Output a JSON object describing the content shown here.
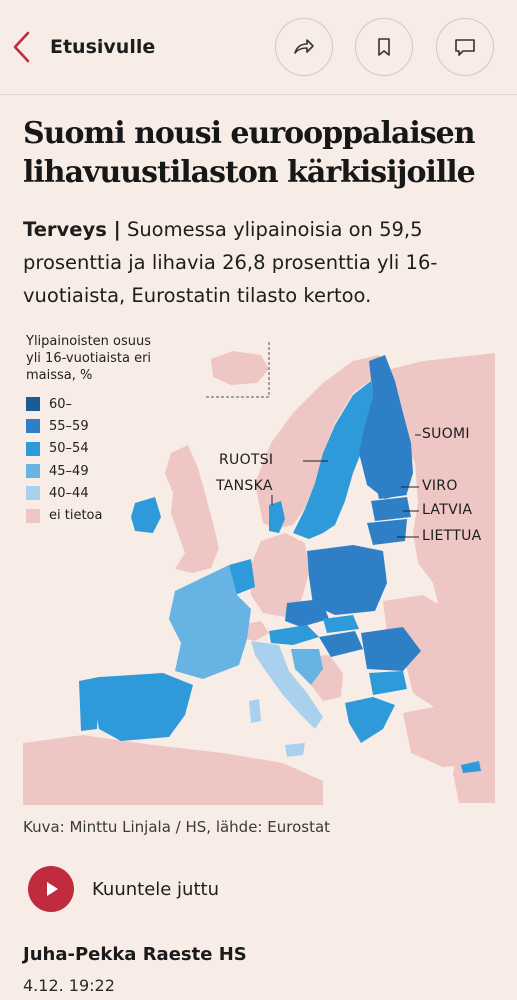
{
  "nav": {
    "back_label": "Etusivulle"
  },
  "article": {
    "headline": "Suomi nousi eurooppalaisen lihavuustilaston kärkisijoille",
    "kicker": "Terveys |",
    "lead": "Suomessa ylipainoisia on 59,5 prosenttia ja lihavia 26,8 prosenttia yli 16-vuotiaista, Eurostatin tilasto kertoo.",
    "caption": "Kuva: Minttu Linjala / HS, lähde: Eurostat",
    "listen_label": "Kuuntele juttu",
    "author": "Juha-Pekka Raeste HS",
    "date": "4.12. 19:22"
  },
  "map": {
    "legend_title_line1": "Ylipainoisten osuus",
    "legend_title_line2": "yli 16-vuotiaista eri",
    "legend_title_line3": "maissa, %",
    "legend": [
      {
        "label": "60–",
        "color": "#1a5c96"
      },
      {
        "label": "55–59",
        "color": "#2f7fc6"
      },
      {
        "label": "50–54",
        "color": "#2f9ad9"
      },
      {
        "label": "45–49",
        "color": "#67b3e3"
      },
      {
        "label": "40–44",
        "color": "#a9d1ee"
      },
      {
        "label": "ei tietoa",
        "color": "#eec7c4"
      }
    ],
    "country_labels": {
      "suomi": "SUOMI",
      "ruotsi": "RUOTSI",
      "tanska": "TANSKA",
      "viro": "VIRO",
      "latvia": "LATVIA",
      "liettua": "LIETTUA"
    }
  },
  "colors": {
    "background": "#f8ece6",
    "sea": "#f8ece6",
    "accent": "#c12b3e"
  },
  "icons": {
    "back": "chevron-left-icon",
    "share": "share-arrow-icon",
    "bookmark": "bookmark-icon",
    "comment": "comment-icon",
    "play": "play-icon"
  }
}
